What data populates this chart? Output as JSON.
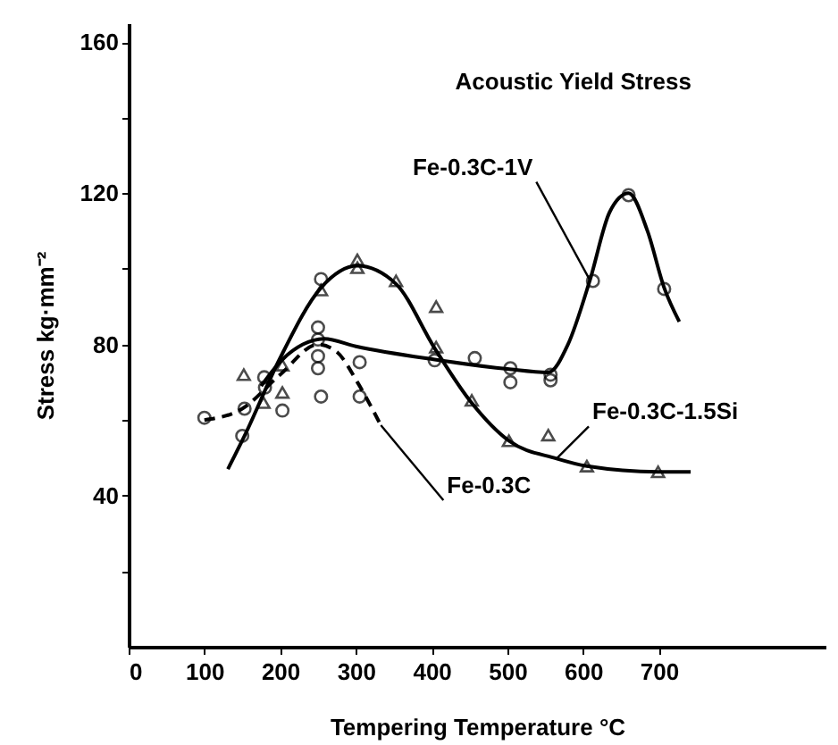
{
  "chart_data": {
    "type": "line",
    "title": "Acoustic Yield Stress",
    "xlabel": "Tempering  Temperature  °C",
    "ylabel": "Stress   kg·mm⁻²",
    "xlim": [
      0,
      920
    ],
    "ylim": [
      0,
      165
    ],
    "xticks": [
      0,
      100,
      200,
      300,
      400,
      500,
      600,
      700
    ],
    "yticks": [
      {
        "value": 20,
        "label": null
      },
      40,
      {
        "value": 60,
        "label": null
      },
      80,
      {
        "value": 100,
        "label": null
      },
      120,
      {
        "value": 140,
        "label": null
      },
      160
    ],
    "grid": false,
    "series": [
      {
        "name": "Fe-0.3C-1V",
        "color": "#000000",
        "marker": "none",
        "line_style": "solid",
        "x": [
          175,
          203,
          230,
          258,
          300,
          404,
          500,
          554,
          580,
          609,
          635,
          660,
          685,
          707,
          727
        ],
        "values": [
          69,
          76,
          80,
          81.5,
          79.5,
          76,
          73.5,
          72.6,
          80,
          97,
          115,
          120,
          110,
          95,
          86
        ]
      },
      {
        "name": "Fe-0.3C-1.5Si",
        "color": "#000000",
        "marker": "none",
        "line_style": "solid",
        "x": [
          131,
          153,
          199,
          254,
          302,
          353,
          404,
          451,
          502,
          565,
          605,
          699,
          742
        ],
        "values": [
          47,
          55.8,
          76,
          95,
          100.8,
          96,
          79,
          65,
          54.5,
          49.8,
          47.8,
          46.3,
          46.3
        ]
      },
      {
        "name": "Fe-0.3C",
        "color": "#000000",
        "marker": "none",
        "line_style": "dashed",
        "x": [
          100,
          150,
          200,
          250,
          275,
          302,
          333
        ],
        "values": [
          60,
          63,
          72,
          80,
          78,
          70,
          58.6
        ]
      },
      {
        "color": "#000000",
        "type": "scatter",
        "marker": "circle",
        "x": [
          150,
          180,
          250,
          250,
          250,
          250,
          305,
          305,
          404,
          457,
          504,
          504,
          557,
          613,
          660,
          707
        ],
        "values": [
          55.8,
          68.6,
          84.5,
          81.3,
          76.9,
          73.7,
          75.3,
          66.2,
          75.8,
          76.4,
          73.7,
          70,
          72,
          96.8,
          119.5,
          94.7
        ]
      },
      {
        "color": "#000000",
        "type": "scatter",
        "marker": "triangle",
        "x": [
          152,
          178,
          203,
          203,
          254,
          302,
          302,
          353,
          406,
          406,
          453,
          502,
          554,
          605,
          699
        ],
        "values": [
          72,
          64.6,
          74.5,
          67.3,
          94.4,
          102.4,
          100.3,
          96.8,
          90,
          79.3,
          65.2,
          54.5,
          56,
          47.8,
          46.3
        ]
      },
      {
        "color": "#000000",
        "type": "scatter",
        "marker": "circle",
        "x": [
          100,
          153,
          179,
          203,
          254,
          254,
          557
        ],
        "values": [
          60.6,
          63,
          71.3,
          62.5,
          97.3,
          66.2,
          70.5
        ]
      }
    ]
  }
}
